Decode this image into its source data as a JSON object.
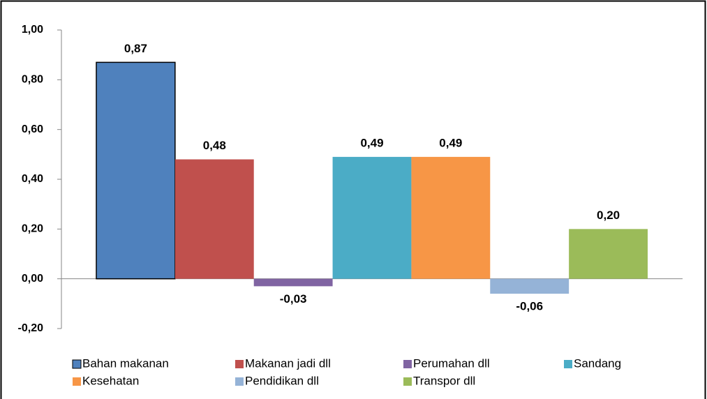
{
  "chart_data": {
    "type": "bar",
    "series": [
      {
        "name": "Bahan makanan",
        "color": "#4f81bd",
        "values": [
          0.87
        ],
        "value_labels": [
          "0,87"
        ]
      },
      {
        "name": "Makanan jadi dll",
        "color": "#c0504d",
        "values": [
          0.48
        ],
        "value_labels": [
          "0,48"
        ]
      },
      {
        "name": "Perumahan dll",
        "color": "#8064a2",
        "values": [
          -0.03
        ],
        "value_labels": [
          "-0,03"
        ]
      },
      {
        "name": "Sandang",
        "color": "#4bacc6",
        "values": [
          0.49
        ],
        "value_labels": [
          "0,49"
        ]
      },
      {
        "name": "Kesehatan",
        "color": "#f79646",
        "values": [
          0.49
        ],
        "value_labels": [
          "0,49"
        ]
      },
      {
        "name": "Pendidikan dll",
        "color": "#95b3d7",
        "values": [
          -0.06
        ],
        "value_labels": [
          "-0,06"
        ]
      },
      {
        "name": "Transpor dll",
        "color": "#9bbb59",
        "values": [
          0.2
        ],
        "value_labels": [
          "0,20"
        ]
      }
    ],
    "ylim": [
      -0.2,
      1.0
    ],
    "yticks": [
      {
        "value": -0.2,
        "label": "-0,20"
      },
      {
        "value": 0,
        "label": "0,00"
      },
      {
        "value": 0.2,
        "label": "0,20"
      },
      {
        "value": 0.4,
        "label": "0,40"
      },
      {
        "value": 0.6,
        "label": "0,60"
      },
      {
        "value": 0.8,
        "label": "0,80"
      },
      {
        "value": 1.0,
        "label": "1,00"
      }
    ],
    "legend": "bottom"
  }
}
